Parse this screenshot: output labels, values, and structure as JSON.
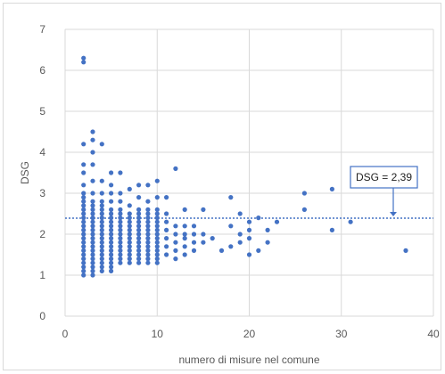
{
  "chart_data": {
    "type": "scatter",
    "xlabel": "numero di misure nel comune",
    "ylabel": "DSG",
    "xlim": [
      0,
      40
    ],
    "ylim": [
      0,
      7
    ],
    "x_ticks": [
      "0",
      "10",
      "20",
      "30",
      "40"
    ],
    "y_ticks": [
      "0",
      "1",
      "2",
      "3",
      "4",
      "5",
      "6",
      "7"
    ],
    "grid": true,
    "marker_color": "#4472c4",
    "reference_line": {
      "y": 2.39,
      "style": "dotted",
      "color": "#4472c4",
      "label": "DSG = 2,39"
    },
    "points": [
      [
        2,
        1.0
      ],
      [
        2,
        1.1
      ],
      [
        2,
        1.2
      ],
      [
        2,
        1.3
      ],
      [
        2,
        1.4
      ],
      [
        2,
        1.5
      ],
      [
        2,
        1.6
      ],
      [
        2,
        1.7
      ],
      [
        2,
        1.8
      ],
      [
        2,
        1.9
      ],
      [
        2,
        2.0
      ],
      [
        2,
        2.1
      ],
      [
        2,
        2.2
      ],
      [
        2,
        2.3
      ],
      [
        2,
        2.4
      ],
      [
        2,
        2.5
      ],
      [
        2,
        2.6
      ],
      [
        2,
        2.7
      ],
      [
        2,
        2.8
      ],
      [
        2,
        2.9
      ],
      [
        2,
        3.0
      ],
      [
        2,
        3.2
      ],
      [
        2,
        3.5
      ],
      [
        2,
        3.7
      ],
      [
        2,
        4.2
      ],
      [
        2,
        6.2
      ],
      [
        2,
        6.3
      ],
      [
        3,
        1.0
      ],
      [
        3,
        1.1
      ],
      [
        3,
        1.2
      ],
      [
        3,
        1.3
      ],
      [
        3,
        1.4
      ],
      [
        3,
        1.5
      ],
      [
        3,
        1.6
      ],
      [
        3,
        1.7
      ],
      [
        3,
        1.8
      ],
      [
        3,
        1.9
      ],
      [
        3,
        2.0
      ],
      [
        3,
        2.1
      ],
      [
        3,
        2.2
      ],
      [
        3,
        2.3
      ],
      [
        3,
        2.4
      ],
      [
        3,
        2.5
      ],
      [
        3,
        2.6
      ],
      [
        3,
        2.7
      ],
      [
        3,
        2.8
      ],
      [
        3,
        3.0
      ],
      [
        3,
        3.3
      ],
      [
        3,
        3.7
      ],
      [
        3,
        4.0
      ],
      [
        3,
        4.3
      ],
      [
        3,
        4.5
      ],
      [
        4,
        1.1
      ],
      [
        4,
        1.2
      ],
      [
        4,
        1.3
      ],
      [
        4,
        1.4
      ],
      [
        4,
        1.5
      ],
      [
        4,
        1.6
      ],
      [
        4,
        1.7
      ],
      [
        4,
        1.8
      ],
      [
        4,
        1.9
      ],
      [
        4,
        2.0
      ],
      [
        4,
        2.1
      ],
      [
        4,
        2.2
      ],
      [
        4,
        2.3
      ],
      [
        4,
        2.4
      ],
      [
        4,
        2.5
      ],
      [
        4,
        2.6
      ],
      [
        4,
        2.7
      ],
      [
        4,
        2.8
      ],
      [
        4,
        3.0
      ],
      [
        4,
        3.3
      ],
      [
        4,
        4.2
      ],
      [
        5,
        1.1
      ],
      [
        5,
        1.2
      ],
      [
        5,
        1.3
      ],
      [
        5,
        1.4
      ],
      [
        5,
        1.5
      ],
      [
        5,
        1.6
      ],
      [
        5,
        1.7
      ],
      [
        5,
        1.8
      ],
      [
        5,
        1.9
      ],
      [
        5,
        2.0
      ],
      [
        5,
        2.1
      ],
      [
        5,
        2.2
      ],
      [
        5,
        2.3
      ],
      [
        5,
        2.4
      ],
      [
        5,
        2.5
      ],
      [
        5,
        2.6
      ],
      [
        5,
        2.8
      ],
      [
        5,
        3.0
      ],
      [
        5,
        3.2
      ],
      [
        5,
        3.5
      ],
      [
        6,
        1.3
      ],
      [
        6,
        1.4
      ],
      [
        6,
        1.5
      ],
      [
        6,
        1.6
      ],
      [
        6,
        1.7
      ],
      [
        6,
        1.8
      ],
      [
        6,
        1.9
      ],
      [
        6,
        2.0
      ],
      [
        6,
        2.1
      ],
      [
        6,
        2.2
      ],
      [
        6,
        2.3
      ],
      [
        6,
        2.4
      ],
      [
        6,
        2.5
      ],
      [
        6,
        2.6
      ],
      [
        6,
        2.8
      ],
      [
        6,
        3.0
      ],
      [
        6,
        3.5
      ],
      [
        7,
        1.3
      ],
      [
        7,
        1.4
      ],
      [
        7,
        1.5
      ],
      [
        7,
        1.6
      ],
      [
        7,
        1.7
      ],
      [
        7,
        1.8
      ],
      [
        7,
        1.9
      ],
      [
        7,
        2.0
      ],
      [
        7,
        2.1
      ],
      [
        7,
        2.2
      ],
      [
        7,
        2.3
      ],
      [
        7,
        2.4
      ],
      [
        7,
        2.5
      ],
      [
        7,
        2.7
      ],
      [
        7,
        3.1
      ],
      [
        8,
        1.3
      ],
      [
        8,
        1.4
      ],
      [
        8,
        1.5
      ],
      [
        8,
        1.6
      ],
      [
        8,
        1.7
      ],
      [
        8,
        1.8
      ],
      [
        8,
        1.9
      ],
      [
        8,
        2.0
      ],
      [
        8,
        2.1
      ],
      [
        8,
        2.2
      ],
      [
        8,
        2.3
      ],
      [
        8,
        2.4
      ],
      [
        8,
        2.5
      ],
      [
        8,
        2.6
      ],
      [
        8,
        2.9
      ],
      [
        8,
        3.2
      ],
      [
        9,
        1.3
      ],
      [
        9,
        1.4
      ],
      [
        9,
        1.5
      ],
      [
        9,
        1.6
      ],
      [
        9,
        1.7
      ],
      [
        9,
        1.8
      ],
      [
        9,
        1.9
      ],
      [
        9,
        2.0
      ],
      [
        9,
        2.1
      ],
      [
        9,
        2.2
      ],
      [
        9,
        2.3
      ],
      [
        9,
        2.4
      ],
      [
        9,
        2.5
      ],
      [
        9,
        2.6
      ],
      [
        9,
        2.8
      ],
      [
        9,
        3.2
      ],
      [
        10,
        1.3
      ],
      [
        10,
        1.4
      ],
      [
        10,
        1.5
      ],
      [
        10,
        1.6
      ],
      [
        10,
        1.7
      ],
      [
        10,
        1.8
      ],
      [
        10,
        1.9
      ],
      [
        10,
        2.0
      ],
      [
        10,
        2.1
      ],
      [
        10,
        2.2
      ],
      [
        10,
        2.3
      ],
      [
        10,
        2.4
      ],
      [
        10,
        2.5
      ],
      [
        10,
        2.6
      ],
      [
        10,
        2.9
      ],
      [
        10,
        3.3
      ],
      [
        11,
        1.5
      ],
      [
        11,
        1.7
      ],
      [
        11,
        1.9
      ],
      [
        11,
        2.1
      ],
      [
        11,
        2.3
      ],
      [
        11,
        2.5
      ],
      [
        11,
        2.9
      ],
      [
        12,
        1.4
      ],
      [
        12,
        1.6
      ],
      [
        12,
        1.8
      ],
      [
        12,
        2.0
      ],
      [
        12,
        2.2
      ],
      [
        12,
        3.6
      ],
      [
        13,
        1.5
      ],
      [
        13,
        1.7
      ],
      [
        13,
        1.9
      ],
      [
        13,
        2.0
      ],
      [
        13,
        2.2
      ],
      [
        13,
        2.6
      ],
      [
        14,
        1.6
      ],
      [
        14,
        1.8
      ],
      [
        14,
        2.0
      ],
      [
        14,
        2.2
      ],
      [
        15,
        1.8
      ],
      [
        15,
        2.0
      ],
      [
        15,
        2.6
      ],
      [
        16,
        1.9
      ],
      [
        17,
        1.6
      ],
      [
        18,
        1.7
      ],
      [
        18,
        2.2
      ],
      [
        18,
        2.9
      ],
      [
        19,
        1.8
      ],
      [
        19,
        2.0
      ],
      [
        19,
        2.5
      ],
      [
        20,
        1.5
      ],
      [
        20,
        1.9
      ],
      [
        20,
        2.1
      ],
      [
        20,
        2.3
      ],
      [
        21,
        1.6
      ],
      [
        21,
        2.4
      ],
      [
        22,
        1.8
      ],
      [
        22,
        2.1
      ],
      [
        23,
        2.3
      ],
      [
        26,
        2.6
      ],
      [
        26,
        3.0
      ],
      [
        29,
        2.1
      ],
      [
        29,
        3.1
      ],
      [
        31,
        2.3
      ],
      [
        37,
        1.6
      ]
    ]
  }
}
